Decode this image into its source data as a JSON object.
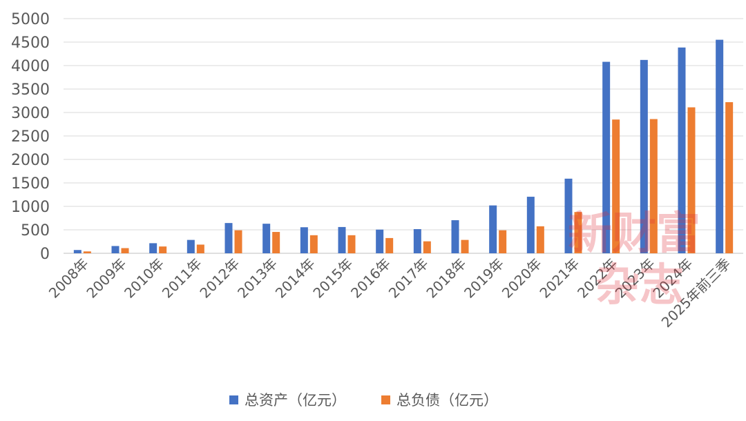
{
  "chart_data": {
    "type": "bar",
    "categories": [
      "2008年",
      "2009年",
      "2010年",
      "2011年",
      "2012年",
      "2013年",
      "2014年",
      "2015年",
      "2016年",
      "2017年",
      "2018年",
      "2019年",
      "2020年",
      "2021年",
      "2022年",
      "2023年",
      "2024年",
      "2025年前三季"
    ],
    "series": [
      {
        "name": "总资产（亿元）",
        "color": "#4472c4",
        "values": [
          70,
          155,
          215,
          285,
          645,
          630,
          555,
          560,
          505,
          515,
          705,
          1020,
          1205,
          1590,
          4080,
          4120,
          4385,
          4550
        ]
      },
      {
        "name": "总负债（亿元）",
        "color": "#ed7d31",
        "values": [
          40,
          110,
          145,
          185,
          490,
          455,
          385,
          385,
          325,
          255,
          285,
          490,
          575,
          880,
          2850,
          2860,
          3110,
          3220
        ]
      }
    ],
    "ylim": [
      0,
      5000
    ],
    "yticks": [
      0,
      500,
      1000,
      1500,
      2000,
      2500,
      3000,
      3500,
      4000,
      4500,
      5000
    ],
    "grid": true,
    "legend": "bottom-center"
  },
  "watermark": {
    "line1": "新财富",
    "line2": "杂志"
  }
}
